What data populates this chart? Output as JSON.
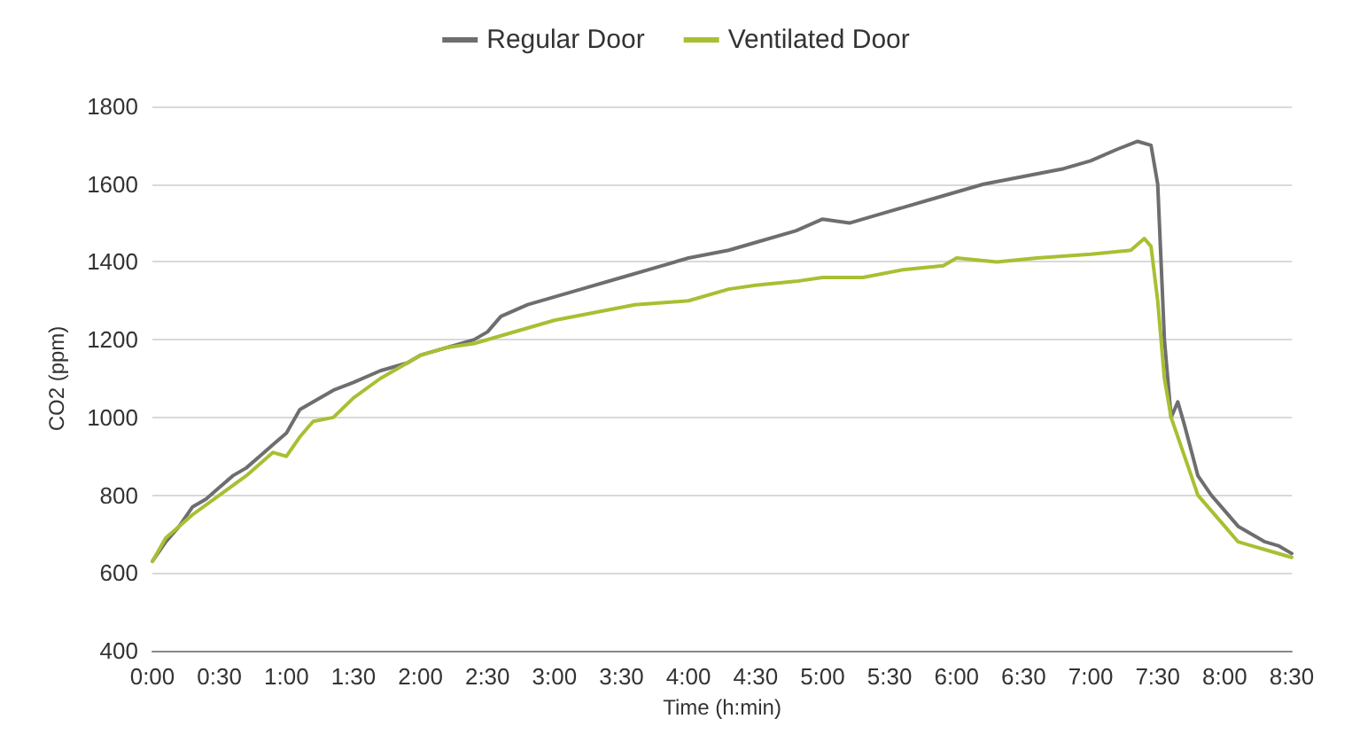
{
  "chart_data": {
    "type": "line",
    "xlabel": "Time (h:min)",
    "ylabel": "CO2 (ppm)",
    "xlim": [
      0,
      8.5
    ],
    "xticks": [
      {
        "value": 0,
        "label": "0:00"
      },
      {
        "value": 0.5,
        "label": "0:30"
      },
      {
        "value": 1,
        "label": "1:00"
      },
      {
        "value": 1.5,
        "label": "1:30"
      },
      {
        "value": 2,
        "label": "2:00"
      },
      {
        "value": 2.5,
        "label": "2:30"
      },
      {
        "value": 3,
        "label": "3:00"
      },
      {
        "value": 3.5,
        "label": "3:30"
      },
      {
        "value": 4,
        "label": "4:00"
      },
      {
        "value": 4.5,
        "label": "4:30"
      },
      {
        "value": 5,
        "label": "5:00"
      },
      {
        "value": 5.5,
        "label": "5:30"
      },
      {
        "value": 6,
        "label": "6:00"
      },
      {
        "value": 6.5,
        "label": "6:30"
      },
      {
        "value": 7,
        "label": "7:00"
      },
      {
        "value": 7.5,
        "label": "7:30"
      },
      {
        "value": 8,
        "label": "8:00"
      },
      {
        "value": 8.5,
        "label": "8:30"
      }
    ],
    "ylim": [
      400,
      1800
    ],
    "yticks": [
      400,
      600,
      800,
      1000,
      1200,
      1400,
      1600,
      1800
    ],
    "grid": "y",
    "legend": "top",
    "marker": "none",
    "line_style": "solid",
    "series": [
      {
        "name": "Regular Door",
        "color": "#6d6e70",
        "x": [
          0,
          0.1,
          0.2,
          0.3,
          0.4,
          0.5,
          0.6,
          0.7,
          0.8,
          0.9,
          1.0,
          1.1,
          1.2,
          1.35,
          1.5,
          1.7,
          1.9,
          2.0,
          2.2,
          2.4,
          2.5,
          2.6,
          2.8,
          3.0,
          3.2,
          3.5,
          3.8,
          4.0,
          4.3,
          4.5,
          4.8,
          5.0,
          5.2,
          5.5,
          5.8,
          6.0,
          6.2,
          6.5,
          6.8,
          7.0,
          7.2,
          7.35,
          7.45,
          7.5,
          7.55,
          7.6,
          7.65,
          7.7,
          7.8,
          7.9,
          8.0,
          8.1,
          8.2,
          8.3,
          8.4,
          8.5
        ],
        "values": [
          630,
          680,
          720,
          770,
          790,
          820,
          850,
          870,
          900,
          930,
          960,
          1020,
          1040,
          1070,
          1090,
          1120,
          1140,
          1160,
          1180,
          1200,
          1220,
          1260,
          1290,
          1310,
          1330,
          1360,
          1390,
          1410,
          1430,
          1450,
          1480,
          1510,
          1500,
          1530,
          1560,
          1580,
          1600,
          1620,
          1640,
          1660,
          1690,
          1710,
          1700,
          1600,
          1200,
          1000,
          1040,
          980,
          850,
          800,
          760,
          720,
          700,
          680,
          670,
          650
        ]
      },
      {
        "name": "Ventilated Door",
        "color": "#a9bf32",
        "x": [
          0,
          0.1,
          0.2,
          0.3,
          0.5,
          0.7,
          0.9,
          1.0,
          1.1,
          1.2,
          1.35,
          1.5,
          1.7,
          1.9,
          2.0,
          2.2,
          2.4,
          2.6,
          2.8,
          3.0,
          3.3,
          3.6,
          4.0,
          4.3,
          4.5,
          4.8,
          5.0,
          5.3,
          5.6,
          5.9,
          6.0,
          6.3,
          6.6,
          7.0,
          7.3,
          7.4,
          7.45,
          7.5,
          7.55,
          7.6,
          7.7,
          7.8,
          7.9,
          8.0,
          8.1,
          8.2,
          8.3,
          8.5
        ],
        "values": [
          630,
          690,
          720,
          750,
          800,
          850,
          910,
          900,
          950,
          990,
          1000,
          1050,
          1100,
          1140,
          1160,
          1180,
          1190,
          1210,
          1230,
          1250,
          1270,
          1290,
          1300,
          1330,
          1340,
          1350,
          1360,
          1360,
          1380,
          1390,
          1410,
          1400,
          1410,
          1420,
          1430,
          1460,
          1440,
          1300,
          1100,
          1000,
          900,
          800,
          760,
          720,
          680,
          670,
          660,
          640
        ]
      }
    ]
  }
}
